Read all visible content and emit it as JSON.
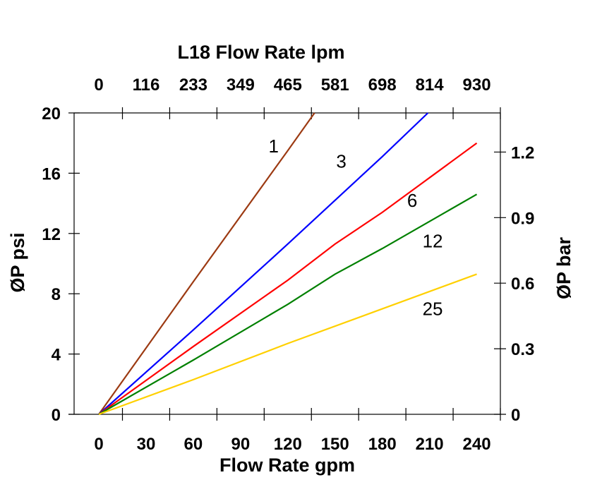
{
  "chart_data": {
    "type": "line",
    "title": "L18 Flow Rate lpm",
    "xlabel": "Flow Rate gpm",
    "ylabel": "ØP psi",
    "y2label": "ØP bar",
    "xlim": [
      -15.7,
      255
    ],
    "ylim": [
      0,
      20
    ],
    "grid": false,
    "x_ticks": [
      0,
      30,
      60,
      90,
      120,
      150,
      180,
      210,
      240
    ],
    "x_tick_labels": [
      "0",
      "30",
      "60",
      "90",
      "120",
      "150",
      "180",
      "210",
      "240"
    ],
    "top_tick_labels": [
      "0",
      "116",
      "233",
      "349",
      "465",
      "581",
      "698",
      "814",
      "930"
    ],
    "y_ticks": [
      0,
      4,
      8,
      12,
      16,
      20
    ],
    "y_tick_labels": [
      "0",
      "4",
      "8",
      "12",
      "16",
      "20"
    ],
    "y2_ticks_bar": [
      0,
      0.3,
      0.6,
      0.9,
      1.2
    ],
    "y2_tick_labels": [
      "0",
      "0.3",
      "0.6",
      "0.9",
      "1.2"
    ],
    "psi_per_bar": 14.5038,
    "series": [
      {
        "label": "1",
        "color": "#9c3a12",
        "label_at": [
          111,
          17.8
        ],
        "points": [
          [
            0,
            0
          ],
          [
            60,
            8.8
          ],
          [
            120,
            17.5
          ],
          [
            137,
            20
          ]
        ]
      },
      {
        "label": "3",
        "color": "#0000ff",
        "label_at": [
          154,
          16.8
        ],
        "points": [
          [
            0,
            0
          ],
          [
            60,
            5.6
          ],
          [
            120,
            11.3
          ],
          [
            180,
            17.1
          ],
          [
            209,
            20
          ]
        ]
      },
      {
        "label": "6",
        "color": "#ff0000",
        "label_at": [
          199,
          14.2
        ],
        "points": [
          [
            0,
            0
          ],
          [
            60,
            4.5
          ],
          [
            120,
            8.9
          ],
          [
            150,
            11.3
          ],
          [
            180,
            13.4
          ],
          [
            210,
            15.7
          ],
          [
            240,
            18.0
          ]
        ]
      },
      {
        "label": "12",
        "color": "#008000",
        "label_at": [
          212,
          11.5
        ],
        "points": [
          [
            0,
            0
          ],
          [
            60,
            3.6
          ],
          [
            120,
            7.3
          ],
          [
            150,
            9.3
          ],
          [
            180,
            11.0
          ],
          [
            240,
            14.6
          ]
        ]
      },
      {
        "label": "25",
        "color": "#ffd000",
        "label_at": [
          212,
          7.0
        ],
        "points": [
          [
            0,
            0
          ],
          [
            60,
            2.3
          ],
          [
            120,
            4.7
          ],
          [
            180,
            7.0
          ],
          [
            240,
            9.3
          ]
        ]
      }
    ]
  }
}
